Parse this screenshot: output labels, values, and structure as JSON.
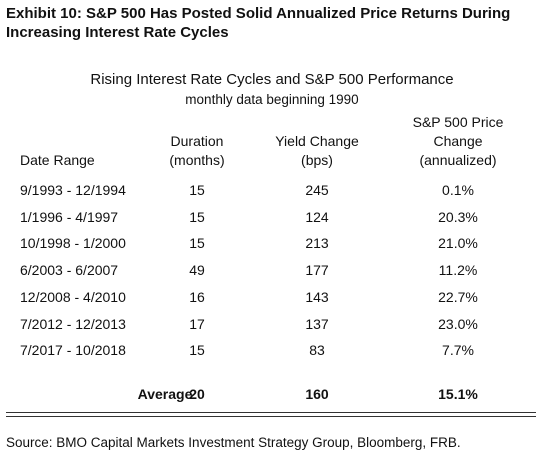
{
  "header": {
    "title_lines": [
      "Exhibit 10: S&P 500 Has Posted Solid Annualized Price Returns During",
      "Increasing Interest Rate Cycles"
    ]
  },
  "table": {
    "title": "Rising Interest Rate Cycles and S&P 500 Performance",
    "subtitle": "monthly data beginning 1990",
    "columns": [
      [
        "Date Range"
      ],
      [
        "Duration",
        "(months)"
      ],
      [
        "Yield Change",
        "(bps)"
      ],
      [
        "S&P 500 Price",
        "Change",
        "(annualized)"
      ]
    ],
    "rows": [
      [
        "9/1993 - 12/1994",
        "15",
        "245",
        "0.1%"
      ],
      [
        "1/1996 - 4/1997",
        "15",
        "124",
        "20.3%"
      ],
      [
        "10/1998 - 1/2000",
        "15",
        "213",
        "21.0%"
      ],
      [
        "6/2003 - 6/2007",
        "49",
        "177",
        "11.2%"
      ],
      [
        "12/2008 - 4/2010",
        "16",
        "143",
        "22.7%"
      ],
      [
        "7/2012 - 12/2013",
        "17",
        "137",
        "23.0%"
      ],
      [
        "7/2017 - 10/2018",
        "15",
        "83",
        "7.7%"
      ]
    ],
    "average": [
      "Average",
      "20",
      "160",
      "15.1%"
    ]
  },
  "footer": {
    "source": "Source: BMO Capital Markets Investment Strategy Group, Bloomberg, FRB."
  }
}
